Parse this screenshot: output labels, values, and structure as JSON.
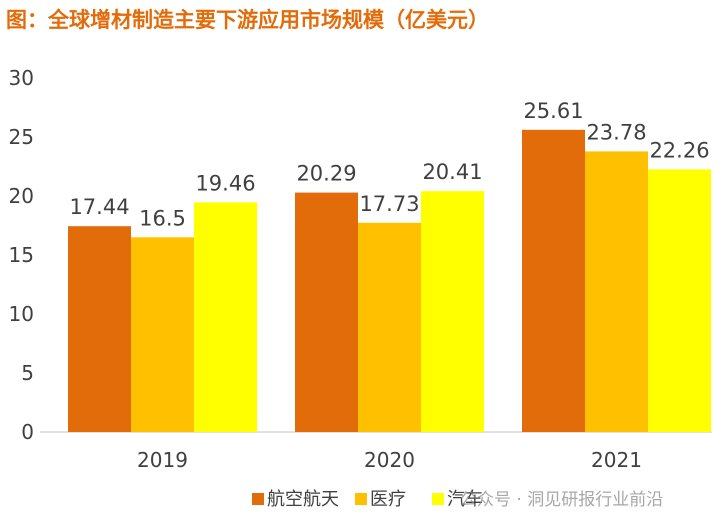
{
  "chart_data": {
    "type": "bar",
    "title": "图：全球增材制造主要下游应用市场规模（亿美元）",
    "categories": [
      "2019",
      "2020",
      "2021"
    ],
    "series": [
      {
        "name": "航空航天",
        "color": "#E36C0A",
        "values": [
          17.44,
          20.29,
          25.61
        ],
        "labels": [
          "17.44",
          "20.29",
          "25.61"
        ]
      },
      {
        "name": "医疗",
        "color": "#FFC000",
        "values": [
          16.5,
          17.73,
          23.78
        ],
        "labels": [
          "16.5",
          "17.73",
          "23.78"
        ]
      },
      {
        "name": "汽车",
        "color": "#FFFF00",
        "values": [
          19.46,
          20.41,
          22.26
        ],
        "labels": [
          "19.46",
          "20.41",
          "22.26"
        ]
      }
    ],
    "yticks": [
      "0",
      "5",
      "10",
      "15",
      "20",
      "25",
      "30"
    ],
    "ylim": [
      0,
      30
    ],
    "xlabel": "",
    "ylabel": "",
    "title_color": "#E36C0A",
    "legend_position": "bottom-center"
  },
  "watermark": "公众号 · 洞见研报行业前沿"
}
